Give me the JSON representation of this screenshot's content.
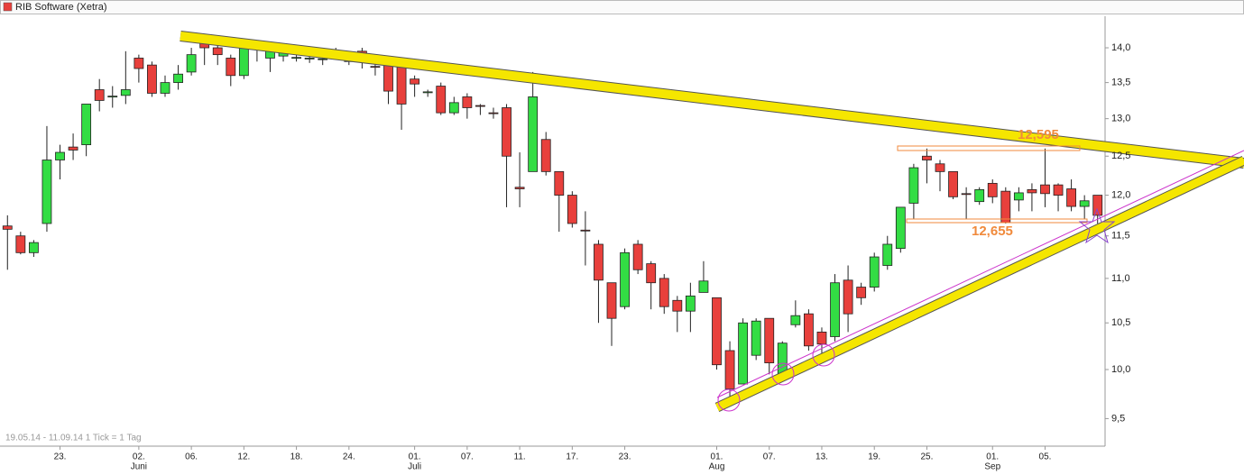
{
  "chart_data": {
    "type": "candlestick",
    "title": "RIB Software (Xetra)",
    "footer": "19.05.14 - 11.09.14   1 Tick = 1 Tag",
    "log_scale": true,
    "categories": [
      null,
      null,
      null,
      null,
      "23.",
      null,
      null,
      null,
      null,
      null,
      "02.",
      null,
      null,
      null,
      "06.",
      null,
      null,
      null,
      "12.",
      null,
      null,
      null,
      "18.",
      null,
      null,
      null,
      "24.",
      null,
      null,
      null,
      null,
      "01.",
      null,
      null,
      null,
      "07.",
      null,
      null,
      null,
      "11.",
      null,
      null,
      null,
      "17.",
      null,
      null,
      null,
      "23.",
      null,
      null,
      null,
      null,
      null,
      null,
      "01.",
      null,
      null,
      null,
      "07.",
      null,
      null,
      null,
      "13.",
      null,
      null,
      null,
      "19.",
      null,
      null,
      null,
      "25.",
      null,
      null,
      null,
      null,
      "01.",
      null,
      null,
      null,
      "05.",
      null,
      null,
      null,
      null
    ],
    "category_months": [
      null,
      null,
      null,
      null,
      null,
      null,
      null,
      null,
      null,
      null,
      "Juni",
      null,
      null,
      null,
      null,
      null,
      null,
      null,
      null,
      null,
      null,
      null,
      null,
      null,
      null,
      null,
      null,
      null,
      null,
      null,
      null,
      "Juli",
      null,
      null,
      null,
      null,
      null,
      null,
      null,
      null,
      null,
      null,
      null,
      null,
      null,
      null,
      null,
      null,
      null,
      null,
      null,
      null,
      null,
      null,
      "Aug",
      null,
      null,
      null,
      null,
      null,
      null,
      null,
      null,
      null,
      null,
      null,
      null,
      null,
      null,
      null,
      null,
      null,
      null,
      null,
      null,
      "Sep",
      null,
      null,
      null,
      null,
      null,
      null,
      null,
      null
    ],
    "series": [
      {
        "name": "RIB Software (Xetra)",
        "color": "#e8403c",
        "color_up": "#33dd44",
        "color_down": "#e8403c",
        "open": [
          11.62,
          11.5,
          11.3,
          11.65,
          12.45,
          12.62,
          12.65,
          13.4,
          13.3,
          13.32,
          13.85,
          13.75,
          13.35,
          13.5,
          13.65,
          14.1,
          14.0,
          13.85,
          13.6,
          14.0,
          13.85,
          13.88,
          13.85,
          13.85,
          13.83,
          13.9,
          13.8,
          13.95,
          13.73,
          13.75,
          13.75,
          13.55,
          13.36,
          13.45,
          13.08,
          13.3,
          13.18,
          13.08,
          13.15,
          12.1,
          12.3,
          12.72,
          12.3,
          12.0,
          11.57,
          11.4,
          10.95,
          10.68,
          11.4,
          11.17,
          11.0,
          10.75,
          10.63,
          10.84,
          10.78,
          10.2,
          9.85,
          10.15,
          10.55,
          9.95,
          10.48,
          10.6,
          10.4,
          10.35,
          10.98,
          10.9,
          10.9,
          11.15,
          11.35,
          11.9,
          12.5,
          12.4,
          12.3,
          12.02,
          11.92,
          12.15,
          12.05,
          11.94,
          12.07,
          12.13,
          12.13,
          12.08,
          11.86,
          12.0
        ],
        "high": [
          11.75,
          11.55,
          11.45,
          12.9,
          12.65,
          12.8,
          13.2,
          13.55,
          13.45,
          13.95,
          13.9,
          13.8,
          13.6,
          13.75,
          14.0,
          14.2,
          14.1,
          13.9,
          14.05,
          14.05,
          14.05,
          14.0,
          13.9,
          13.9,
          13.9,
          14.0,
          13.95,
          14.0,
          13.8,
          13.8,
          13.8,
          13.6,
          13.4,
          13.5,
          13.3,
          13.35,
          13.2,
          13.15,
          13.2,
          12.55,
          13.65,
          12.82,
          12.3,
          12.05,
          11.8,
          11.45,
          10.95,
          11.35,
          11.45,
          11.2,
          11.05,
          10.8,
          10.95,
          11.2,
          10.78,
          10.3,
          10.55,
          10.55,
          10.55,
          10.3,
          10.75,
          10.65,
          10.45,
          11.05,
          11.15,
          10.95,
          11.3,
          11.5,
          11.85,
          12.4,
          12.6,
          12.45,
          12.3,
          12.1,
          12.1,
          12.2,
          12.1,
          12.1,
          12.15,
          12.6,
          12.15,
          12.2,
          12.0,
          12.0
        ],
        "low": [
          11.1,
          11.28,
          11.25,
          11.55,
          12.2,
          12.45,
          12.5,
          13.1,
          13.15,
          13.2,
          13.5,
          13.3,
          13.3,
          13.4,
          13.6,
          13.75,
          13.75,
          13.45,
          13.55,
          13.8,
          13.65,
          13.8,
          13.8,
          13.78,
          13.75,
          13.85,
          13.75,
          13.7,
          13.6,
          13.2,
          12.85,
          13.3,
          13.3,
          13.05,
          13.05,
          13.0,
          13.05,
          13.0,
          11.85,
          11.85,
          12.3,
          12.25,
          11.55,
          11.6,
          11.15,
          10.5,
          10.25,
          10.65,
          11.05,
          10.65,
          10.6,
          10.4,
          10.4,
          10.85,
          10.0,
          9.65,
          9.85,
          10.1,
          9.95,
          9.9,
          10.45,
          10.2,
          10.15,
          10.3,
          10.4,
          10.7,
          10.85,
          11.1,
          11.3,
          11.7,
          12.15,
          12.05,
          11.95,
          11.7,
          11.88,
          11.9,
          11.65,
          11.8,
          11.8,
          11.85,
          11.8,
          11.8,
          11.7,
          11.65
        ],
        "close": [
          11.58,
          11.3,
          11.42,
          12.45,
          12.55,
          12.58,
          13.2,
          13.25,
          13.31,
          13.4,
          13.7,
          13.35,
          13.5,
          13.62,
          13.9,
          14.0,
          13.9,
          13.6,
          14.0,
          14.02,
          14.0,
          13.95,
          13.86,
          13.85,
          13.84,
          13.91,
          13.88,
          13.8,
          13.72,
          13.38,
          13.2,
          13.48,
          13.37,
          13.08,
          13.22,
          13.15,
          13.17,
          13.07,
          12.5,
          12.08,
          13.3,
          12.3,
          12.0,
          11.65,
          11.56,
          10.98,
          10.55,
          11.3,
          11.1,
          10.95,
          10.68,
          10.63,
          10.8,
          10.97,
          10.05,
          9.8,
          10.5,
          10.52,
          10.07,
          10.28,
          10.58,
          10.25,
          10.27,
          10.95,
          10.6,
          10.78,
          11.25,
          11.4,
          11.85,
          12.35,
          12.45,
          12.3,
          11.98,
          12.01,
          12.07,
          11.98,
          11.66,
          12.03,
          12.03,
          12.02,
          12.0,
          11.86,
          11.93,
          11.75
        ]
      }
    ],
    "ylim": [
      9.23,
      14.47
    ],
    "yticks": [
      {
        "value": 9.5,
        "label": "9,5"
      },
      {
        "value": 10,
        "label": "10,0"
      },
      {
        "value": 10.5,
        "label": "10,5"
      },
      {
        "value": 11,
        "label": "11,0"
      },
      {
        "value": 11.5,
        "label": "11,5"
      },
      {
        "value": 12,
        "label": "12,0"
      },
      {
        "value": 12.5,
        "label": "12,5"
      },
      {
        "value": 13,
        "label": "13,0"
      },
      {
        "value": 13.5,
        "label": "13,5"
      },
      {
        "value": 14,
        "label": "14,0"
      }
    ],
    "annotations": [
      {
        "label": "12,595"
      },
      {
        "label": "12,655"
      }
    ]
  }
}
